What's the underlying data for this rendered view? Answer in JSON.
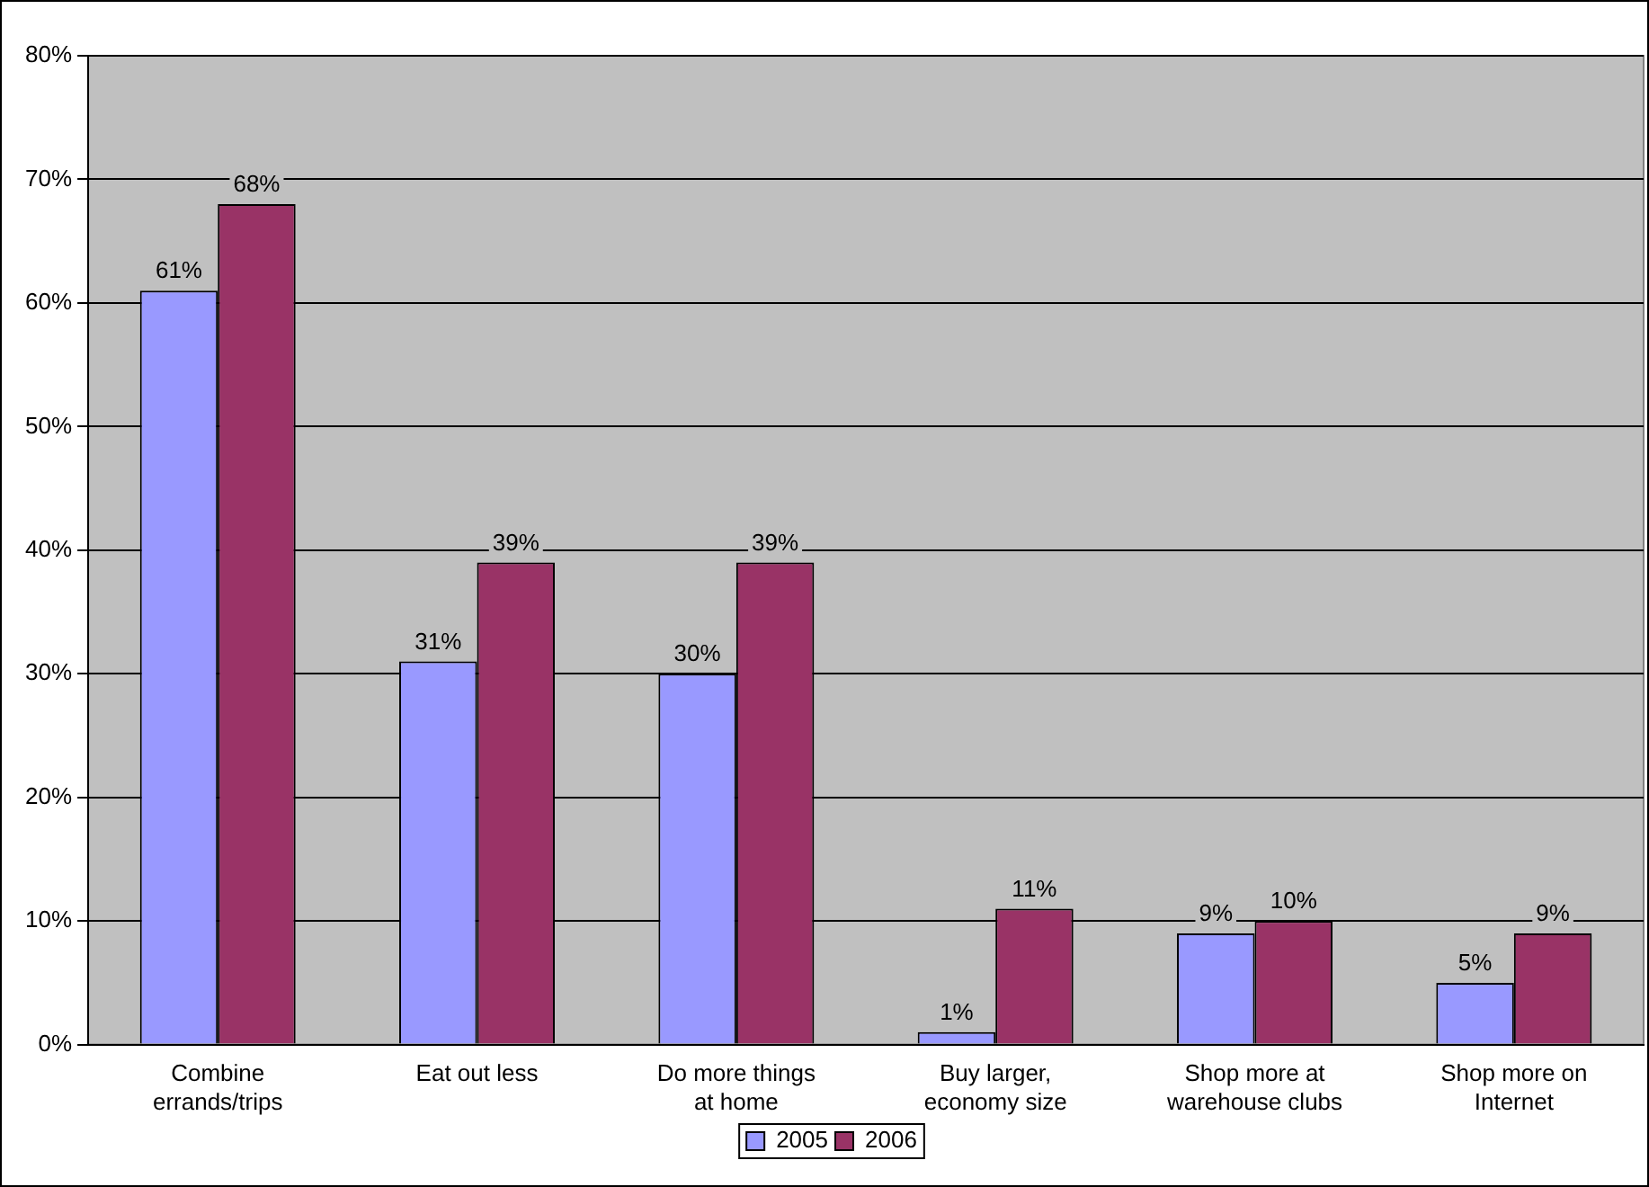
{
  "chart_data": {
    "type": "bar",
    "categories": [
      "Combine\nerrands/trips",
      "Eat out less",
      "Do more things\nat home",
      "Buy larger,\neconomy size",
      "Shop more at\nwarehouse clubs",
      "Shop more on\nInternet"
    ],
    "series": [
      {
        "name": "2005",
        "color": "#9999ff",
        "values": [
          61,
          31,
          30,
          1,
          9,
          5
        ],
        "value_labels": [
          "61%",
          "31%",
          "30%",
          "1%",
          "9%",
          "5%"
        ]
      },
      {
        "name": "2006",
        "color": "#993366",
        "values": [
          68,
          39,
          39,
          11,
          10,
          9
        ],
        "value_labels": [
          "68%",
          "39%",
          "39%",
          "11%",
          "10%",
          "9%"
        ]
      }
    ],
    "ylim": [
      0,
      80
    ],
    "yticks": [
      {
        "value": 0,
        "label": "0%"
      },
      {
        "value": 10,
        "label": "10%"
      },
      {
        "value": 20,
        "label": "20%"
      },
      {
        "value": 30,
        "label": "30%"
      },
      {
        "value": 40,
        "label": "40%"
      },
      {
        "value": 50,
        "label": "50%"
      },
      {
        "value": 60,
        "label": "60%"
      },
      {
        "value": 70,
        "label": "70%"
      },
      {
        "value": 80,
        "label": "80%"
      }
    ],
    "grid": "y",
    "legend": "bottom"
  }
}
